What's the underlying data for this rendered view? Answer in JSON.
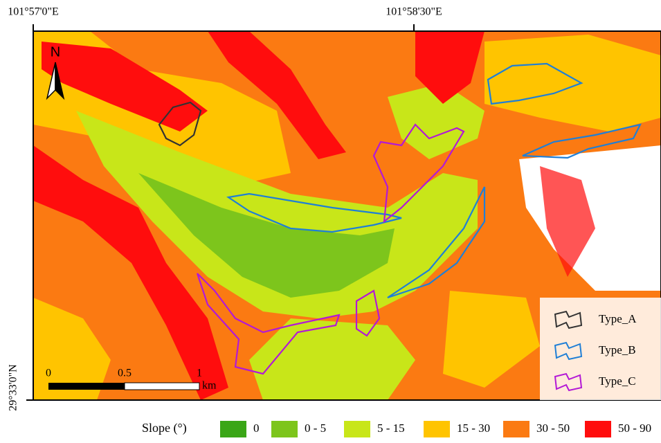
{
  "coordinates": {
    "top": [
      "101°57'0\"E",
      "101°58'30\"E"
    ],
    "left": [
      "29°33'0\"N"
    ]
  },
  "north_arrow": "N",
  "scale_bar": {
    "labels": [
      "0",
      "0.5",
      "1"
    ],
    "unit": "km"
  },
  "legend": {
    "items": [
      {
        "label": "Type_A",
        "color": "#333333"
      },
      {
        "label": "Type_B",
        "color": "#1f7fd6"
      },
      {
        "label": "Type_C",
        "color": "#b319d6"
      }
    ]
  },
  "slope_legend": {
    "title": "Slope (°)",
    "classes": [
      {
        "label": "0",
        "color": "#3aa617"
      },
      {
        "label": "0 - 5",
        "color": "#7dc51c"
      },
      {
        "label": "5 - 15",
        "color": "#c8e619"
      },
      {
        "label": "15 - 30",
        "color": "#ffc400"
      },
      {
        "label": "30 - 50",
        "color": "#fb7a12"
      },
      {
        "label": "50 - 90",
        "color": "#ff0d0d"
      }
    ]
  }
}
